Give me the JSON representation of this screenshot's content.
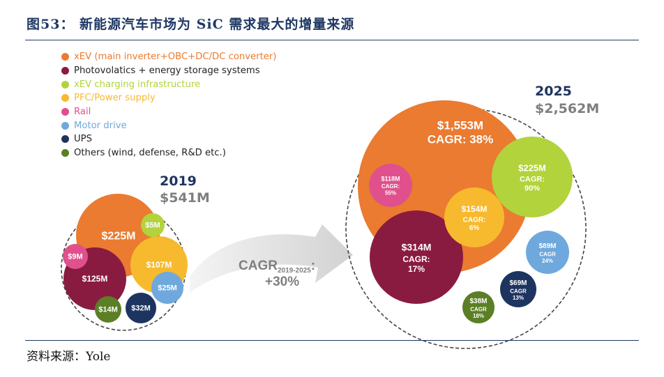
{
  "figure": {
    "title": "图53：  新能源汽车市场为 SiC 需求最大的增量来源",
    "source": "资料来源：Yole"
  },
  "colors": {
    "title": "#1f3864",
    "segments": [
      "#ea7b30",
      "#8a1b40",
      "#b2d33c",
      "#f7b92e",
      "#e0508d",
      "#6fa8dc",
      "#1e3460",
      "#5b7f25"
    ]
  },
  "chart_data": {
    "type": "bubble",
    "legend": [
      {
        "label": "xEV (main inverter+OBC+DC/DC converter)",
        "color": "#ea7b30"
      },
      {
        "label": "Photovolatics + energy storage systems",
        "color": "#8a1b40"
      },
      {
        "label": "xEV charging infrastructure",
        "color": "#b2d33c"
      },
      {
        "label": "PFC/Power supply",
        "color": "#f7b92e"
      },
      {
        "label": "Rail",
        "color": "#e0508d"
      },
      {
        "label": "Motor drive",
        "color": "#6fa8dc"
      },
      {
        "label": "UPS",
        "color": "#1e3460"
      },
      {
        "label": "Others (wind, defense, R&D etc.)",
        "color": "#5b7f25"
      }
    ],
    "legend_placement": "top-left",
    "growth": {
      "label": "CAGR",
      "subscript": "2019-2025",
      "colon": ":",
      "value": "+30%"
    },
    "years": [
      {
        "year": "2019",
        "total": "$541M",
        "segments": [
          {
            "segment": "xEV (main inverter+OBC+DC/DC converter)",
            "value_label": "$225M"
          },
          {
            "segment": "Photovolatics + energy storage systems",
            "value_label": "$125M"
          },
          {
            "segment": "xEV charging infrastructure",
            "value_label": "$5M"
          },
          {
            "segment": "PFC/Power supply",
            "value_label": "$107M"
          },
          {
            "segment": "Rail",
            "value_label": "$9M"
          },
          {
            "segment": "Motor drive",
            "value_label": "$25M"
          },
          {
            "segment": "UPS",
            "value_label": "$32M"
          },
          {
            "segment": "Others (wind, defense, R&D etc.)",
            "value_label": "$14M"
          }
        ]
      },
      {
        "year": "2025",
        "total": "$2,562M",
        "segments": [
          {
            "segment": "xEV (main inverter+OBC+DC/DC converter)",
            "value_label": "$1,553M",
            "cagr": "CAGR: 38%"
          },
          {
            "segment": "Photovolatics + energy storage systems",
            "value_label": "$314M",
            "cagr": "CAGR:",
            "cagr_value": "17%"
          },
          {
            "segment": "xEV charging infrastructure",
            "value_label": "$225M",
            "cagr": "CAGR:",
            "cagr_value": "90%"
          },
          {
            "segment": "PFC/Power supply",
            "value_label": "$154M",
            "cagr": "CAGR:",
            "cagr_value": "6%"
          },
          {
            "segment": "Rail",
            "value_label": "$118M",
            "cagr": "CAGR:",
            "cagr_value": "55%"
          },
          {
            "segment": "Motor drive",
            "value_label": "$89M",
            "cagr": "CAGR",
            "cagr_value": "24%"
          },
          {
            "segment": "UPS",
            "value_label": "$69M",
            "cagr": "CAGR",
            "cagr_value": "13%"
          },
          {
            "segment": "Others (wind, defense, R&D etc.)",
            "value_label": "$38M",
            "cagr": "CAGR",
            "cagr_value": "18%"
          }
        ]
      }
    ]
  }
}
